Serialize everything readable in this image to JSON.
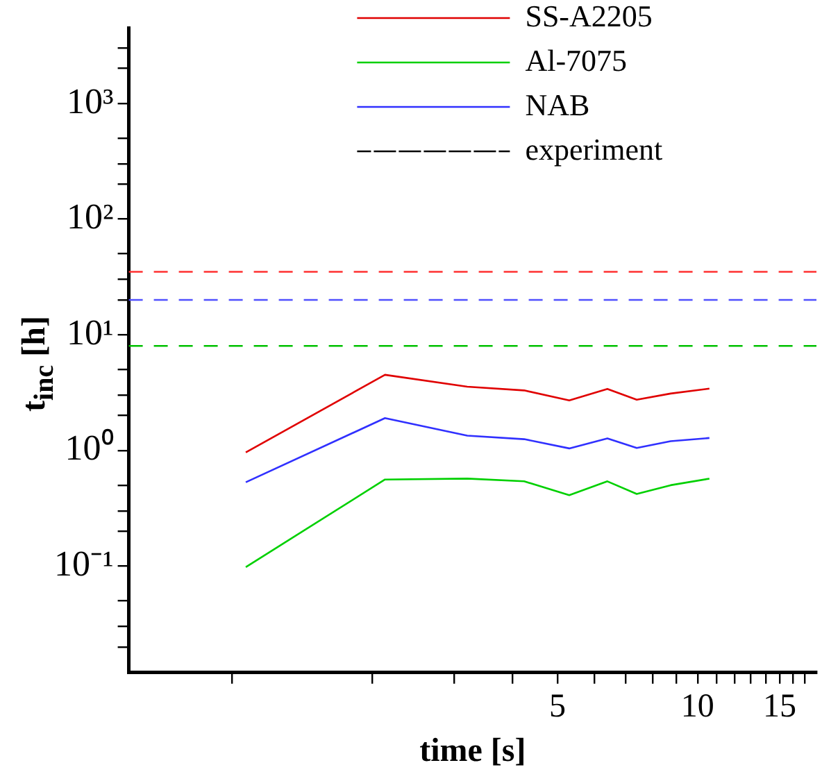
{
  "chart_data": {
    "type": "line",
    "xlabel": "time [s]",
    "ylabel": "t$_{inc}$ [h]",
    "x": [
      1.07,
      2.13,
      3.2,
      4.24,
      5.3,
      6.4,
      7.4,
      8.75,
      10.6
    ],
    "series": [
      {
        "name": "SS-A2205",
        "color": "#e00000",
        "values": [
          0.96,
          4.5,
          3.55,
          3.3,
          2.7,
          3.4,
          2.74,
          3.1,
          3.42
        ]
      },
      {
        "name": "Al-7075",
        "color": "#00d000",
        "values": [
          0.098,
          0.56,
          0.57,
          0.54,
          0.41,
          0.54,
          0.42,
          0.5,
          0.57
        ]
      },
      {
        "name": "NAB",
        "color": "#3030ff",
        "values": [
          0.53,
          1.9,
          1.34,
          1.25,
          1.04,
          1.27,
          1.05,
          1.2,
          1.28
        ]
      },
      {
        "name": "experiment",
        "color": "#000000",
        "line_style": "dashed",
        "values": [
          null,
          null,
          null,
          null,
          null,
          null,
          null,
          null,
          null
        ]
      }
    ],
    "ref_lines": [
      {
        "axis": "y",
        "value": 35,
        "color": "#ff3030",
        "line_style": "dashed"
      },
      {
        "axis": "y",
        "value": 20,
        "color": "#5050ff",
        "line_style": "dashed"
      },
      {
        "axis": "y",
        "value": 8,
        "color": "#00c000",
        "line_style": "dashed"
      }
    ],
    "log": "xy",
    "grid": false,
    "legend": "top right",
    "marker": "none",
    "line_style": "solid",
    "xlim": [
      0.6,
      18
    ],
    "xticks": [
      {
        "value": 1,
        "label": null
      },
      {
        "value": 2,
        "label": null
      },
      {
        "value": 3,
        "label": null
      },
      {
        "value": 4,
        "label": null
      },
      5,
      {
        "value": 6,
        "label": null
      },
      {
        "value": 7,
        "label": null
      },
      {
        "value": 8,
        "label": null
      },
      {
        "value": 9,
        "label": null
      },
      10,
      {
        "value": 11,
        "label": null
      },
      {
        "value": 12,
        "label": null
      },
      {
        "value": 13,
        "label": null
      },
      {
        "value": 14,
        "label": null
      },
      15,
      {
        "value": 16,
        "label": null
      },
      {
        "value": 17,
        "label": null
      }
    ],
    "ylim": [
      0.012,
      4500
    ],
    "yticks": [
      {
        "value": 0.02,
        "label": null
      },
      {
        "value": 0.03,
        "label": null
      },
      {
        "value": 0.05,
        "label": null
      },
      {
        "value": 0.1,
        "label": "10⁻¹"
      },
      {
        "value": 0.2,
        "label": null
      },
      {
        "value": 0.3,
        "label": null
      },
      {
        "value": 0.5,
        "label": null
      },
      {
        "value": 1,
        "label": "10⁰"
      },
      {
        "value": 2,
        "label": null
      },
      {
        "value": 3,
        "label": null
      },
      {
        "value": 5,
        "label": null
      },
      {
        "value": 10,
        "label": "10¹"
      },
      {
        "value": 20,
        "label": null
      },
      {
        "value": 30,
        "label": null
      },
      {
        "value": 50,
        "label": null
      },
      {
        "value": 100,
        "label": "10²"
      },
      {
        "value": 200,
        "label": null
      },
      {
        "value": 300,
        "label": null
      },
      {
        "value": 500,
        "label": null
      },
      {
        "value": 1000,
        "label": "10³"
      },
      {
        "value": 2000,
        "label": null
      },
      {
        "value": 3000,
        "label": null
      }
    ]
  }
}
